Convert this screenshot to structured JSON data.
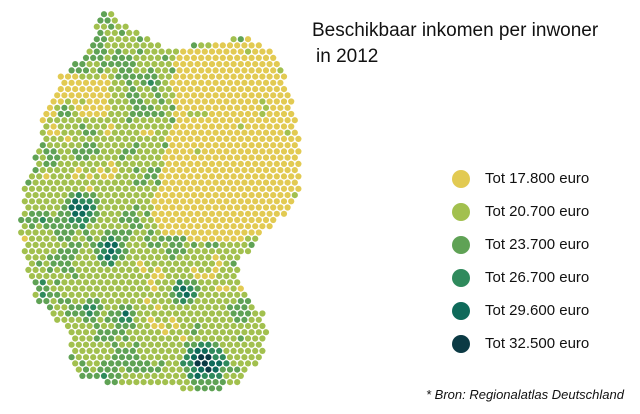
{
  "title": {
    "line1": "Beschikbaar inkomen per inwoner",
    "line2": "in 2012"
  },
  "legend": {
    "items": [
      {
        "label": "Tot 17.800 euro",
        "color": "#e2ca52"
      },
      {
        "label": "Tot 20.700 euro",
        "color": "#a2c04e"
      },
      {
        "label": "Tot 23.700 euro",
        "color": "#5fa255"
      },
      {
        "label": "Tot 26.700 euro",
        "color": "#2f8a5c"
      },
      {
        "label": "Tot 29.600 euro",
        "color": "#0f6a5a"
      },
      {
        "label": "Tot 32.500 euro",
        "color": "#0b3a44"
      }
    ]
  },
  "source": "* Bron: Regionalatlas Deutschland"
}
